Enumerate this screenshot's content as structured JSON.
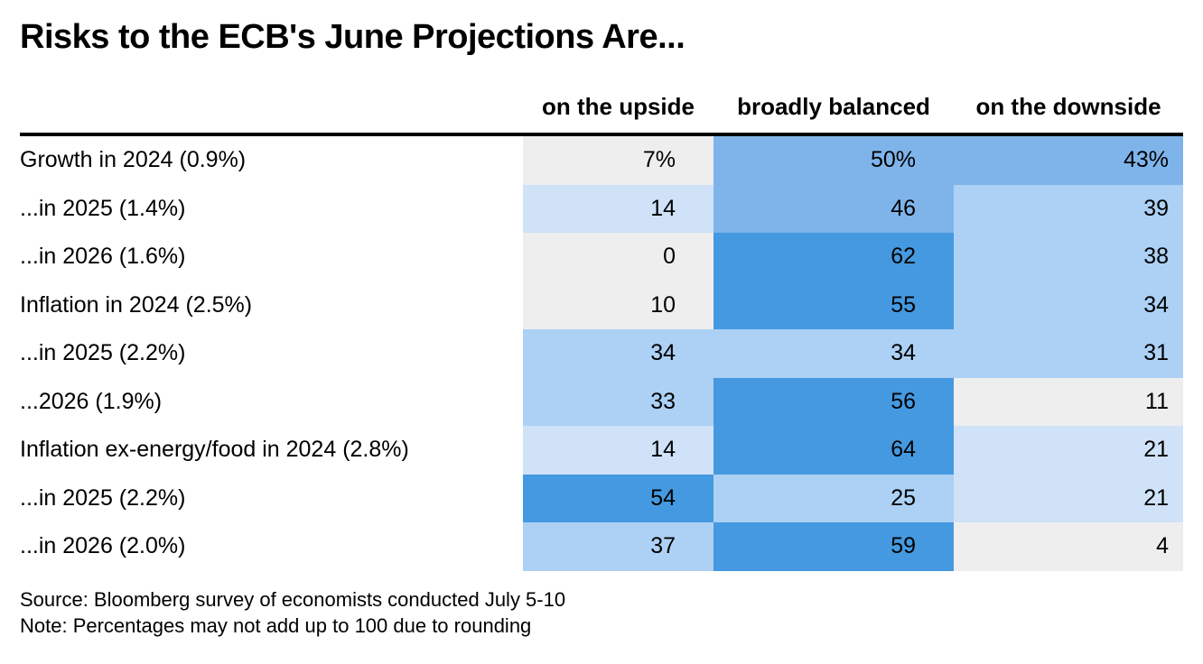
{
  "title": "Risks to the ECB's June Projections Are...",
  "columns": [
    "on the upside",
    "broadly balanced",
    "on the downside"
  ],
  "source": "Source: Bloomberg survey of economists conducted July 5-10",
  "note": "Note: Percentages may not add up to 100 due to rounding",
  "colors": {
    "lowest": "#eeeeee",
    "low": "#cfe2f7",
    "mid": "#acd1f4",
    "high": "#7fb4eb",
    "highest": "#4599e0"
  },
  "chart_data": {
    "type": "table",
    "title": "Risks to the ECB's June Projections Are...",
    "columns": [
      "on the upside",
      "broadly balanced",
      "on the downside"
    ],
    "rows": [
      {
        "label": "Growth in 2024 (0.9%)",
        "values": [
          7,
          50,
          43
        ],
        "display": [
          "7%",
          "50%",
          "43%"
        ]
      },
      {
        "label": "...in 2025 (1.4%)",
        "values": [
          14,
          46,
          39
        ],
        "display": [
          "14",
          "46",
          "39"
        ]
      },
      {
        "label": "...in 2026 (1.6%)",
        "values": [
          0,
          62,
          38
        ],
        "display": [
          "0",
          "62",
          "38"
        ]
      },
      {
        "label": "Inflation in 2024 (2.5%)",
        "values": [
          10,
          55,
          34
        ],
        "display": [
          "10",
          "55",
          "34"
        ]
      },
      {
        "label": "...in 2025 (2.2%)",
        "values": [
          34,
          34,
          31
        ],
        "display": [
          "34",
          "34",
          "31"
        ]
      },
      {
        "label": "...2026 (1.9%)",
        "values": [
          33,
          56,
          11
        ],
        "display": [
          "33",
          "56",
          "11"
        ]
      },
      {
        "label": "Inflation ex-energy/food in 2024 (2.8%)",
        "values": [
          14,
          64,
          21
        ],
        "display": [
          "14",
          "64",
          "21"
        ]
      },
      {
        "label": "...in 2025 (2.2%)",
        "values": [
          54,
          25,
          21
        ],
        "display": [
          "54",
          "25",
          "21"
        ]
      },
      {
        "label": "...in 2026 (2.0%)",
        "values": [
          37,
          59,
          4
        ],
        "display": [
          "37",
          "59",
          "4"
        ]
      }
    ]
  }
}
